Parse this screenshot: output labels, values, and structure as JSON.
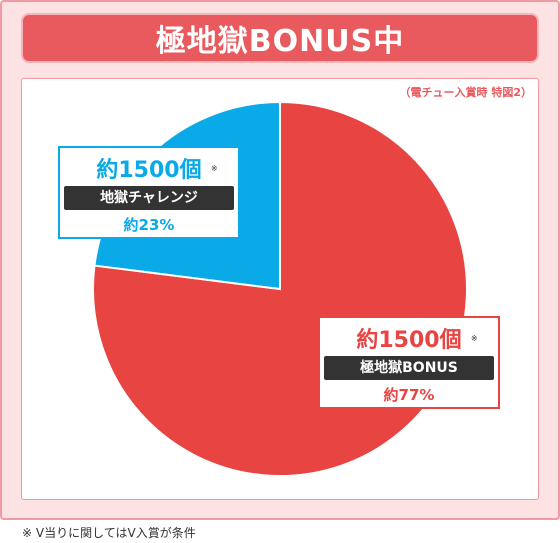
{
  "header": {
    "title": "極地獄BONUS中"
  },
  "condition_note": "（電チュー入賞時 特図2）",
  "footnote": "※ V当りに関してはV入賞が条件",
  "colors": {
    "red": "#e84542",
    "blue": "#0aaae8",
    "frame": "#fde2e4",
    "title_bg": "#e95a5e"
  },
  "chart_data": {
    "type": "pie",
    "title": "",
    "slices": [
      {
        "name": "極地獄BONUS",
        "value": 77,
        "amount": "約1500個",
        "mark": "※",
        "pct_label": "約77%",
        "color": "#e84542"
      },
      {
        "name": "地獄チャレンジ",
        "value": 23,
        "amount": "約1500個",
        "mark": "※",
        "pct_label": "約23%",
        "color": "#0aaae8"
      }
    ]
  }
}
